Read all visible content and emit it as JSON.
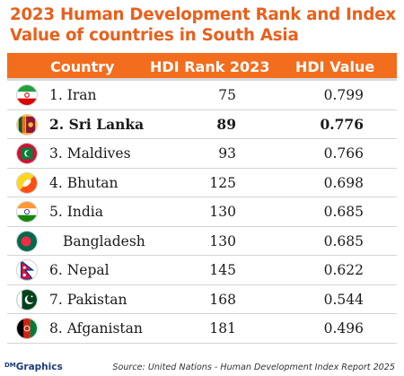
{
  "title": "2023 Human Development Rank and Index Value of countries in South Asia",
  "header": {
    "country": "Country",
    "rank": "HDI Rank 2023",
    "value": "HDI Value"
  },
  "rows": [
    {
      "country": "1. Iran",
      "rank": "75",
      "value": "0.799",
      "flag": "iran-flag-icon"
    },
    {
      "country": "2. Sri Lanka",
      "rank": "89",
      "value": "0.776",
      "flag": "sri-lanka-flag-icon"
    },
    {
      "country": "3. Maldives",
      "rank": "93",
      "value": "0.766",
      "flag": "maldives-flag-icon"
    },
    {
      "country": "4. Bhutan",
      "rank": "125",
      "value": "0.698",
      "flag": "bhutan-flag-icon"
    },
    {
      "country": "5. India",
      "rank": "130",
      "value": "0.685",
      "flag": "india-flag-icon"
    },
    {
      "country": "Bangladesh",
      "rank": "130",
      "value": "0.685",
      "flag": "bangladesh-flag-icon"
    },
    {
      "country": "6. Nepal",
      "rank": "145",
      "value": "0.622",
      "flag": "nepal-flag-icon"
    },
    {
      "country": "7. Pakistan",
      "rank": "168",
      "value": "0.544",
      "flag": "pakistan-flag-icon"
    },
    {
      "country": "8. Afganistan",
      "rank": "181",
      "value": "0.496",
      "flag": "afghanistan-flag-icon"
    }
  ],
  "footer": {
    "brand_prefix": "DM",
    "brand": "Graphics",
    "source": "Source: United Nations - Human Development Index Report 2025"
  },
  "colors": {
    "accent": "#f36d1f",
    "title": "#e8601c"
  },
  "chart_data": {
    "type": "table",
    "title": "2023 Human Development Rank and Index Value of countries in South Asia",
    "columns": [
      "Country",
      "HDI Rank 2023",
      "HDI Value"
    ],
    "rows": [
      [
        "1. Iran",
        75,
        0.799
      ],
      [
        "2. Sri Lanka",
        89,
        0.776
      ],
      [
        "3. Maldives",
        93,
        0.766
      ],
      [
        "4. Bhutan",
        125,
        0.698
      ],
      [
        "5. India",
        130,
        0.685
      ],
      [
        "Bangladesh",
        130,
        0.685
      ],
      [
        "6. Nepal",
        145,
        0.622
      ],
      [
        "7. Pakistan",
        168,
        0.544
      ],
      [
        "8. Afganistan",
        181,
        0.496
      ]
    ]
  }
}
